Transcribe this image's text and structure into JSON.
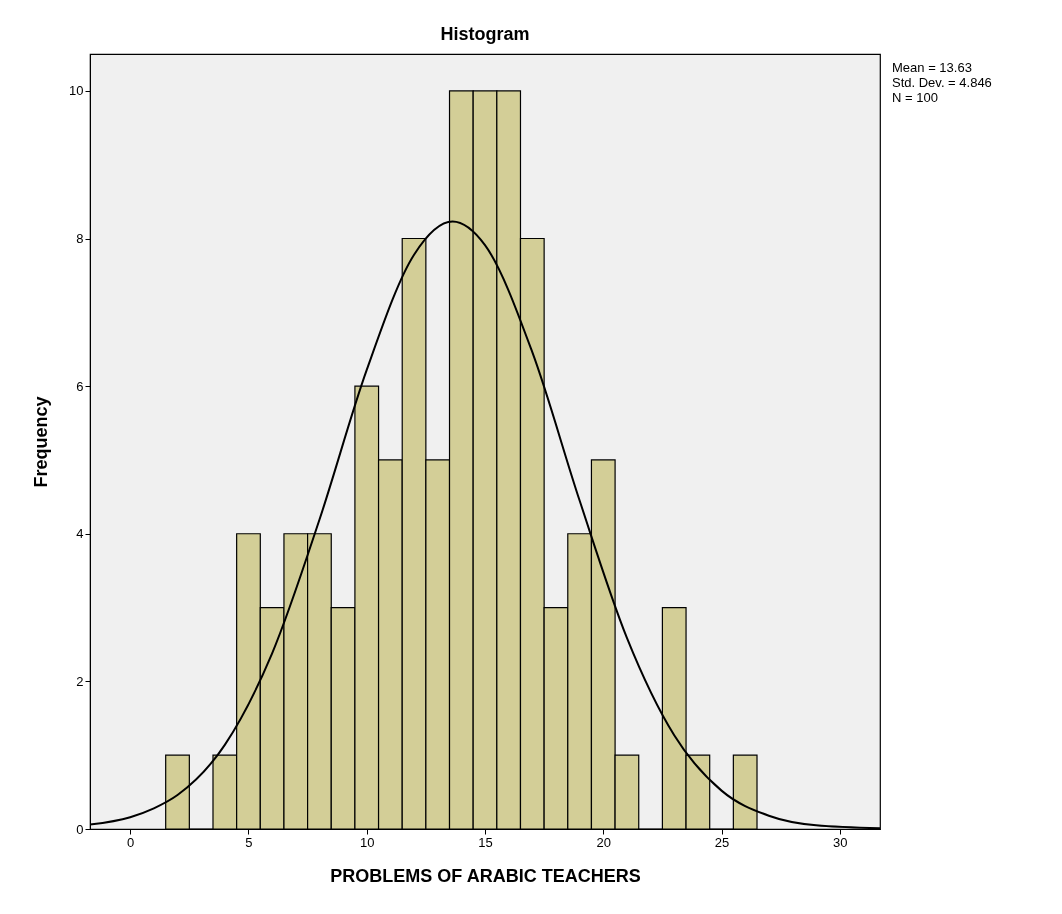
{
  "chart_data": {
    "type": "histogram",
    "title": "Histogram",
    "xlabel": "PROBLEMS OF ARABIC TEACHERS",
    "ylabel": "Frequency",
    "bins": [
      1.5,
      2.5,
      3.5,
      4.5,
      5.5,
      6.5,
      7.5,
      8.5,
      9.5,
      10.5,
      11.5,
      12.5,
      13.5,
      14.5,
      15.5,
      16.5,
      17.5,
      18.5,
      19.5,
      20.5,
      21.5,
      22.5,
      23.5,
      24.5,
      25.5,
      26.5
    ],
    "series": [
      {
        "color": "#d3ce97",
        "values": [
          1,
          0,
          1,
          4,
          3,
          4,
          4,
          3,
          6,
          5,
          8,
          5,
          10,
          10,
          10,
          8,
          3,
          4,
          5,
          1,
          0,
          3,
          1,
          0,
          1
        ]
      },
      {
        "type": "line",
        "color": "#000000",
        "x": [
          -1.7,
          0,
          1,
          2,
          4,
          6,
          8,
          10,
          12,
          13.63,
          15,
          17,
          19,
          21,
          23,
          25,
          27,
          29,
          31.7
        ],
        "values": [
          0.06,
          0.16,
          0.28,
          0.46,
          1.14,
          2.38,
          4.19,
          6.22,
          7.78,
          8.23,
          7.91,
          6.46,
          4.45,
          2.59,
          1.27,
          0.52,
          0.18,
          0.05,
          0.01
        ]
      }
    ],
    "xlim": [
      -1.7,
      31.7
    ],
    "ylim": [
      0,
      10.5
    ],
    "xticks": [
      0,
      5,
      10,
      15,
      20,
      25,
      30
    ],
    "yticks": [
      0,
      2,
      4,
      6,
      8,
      10
    ],
    "grid": false,
    "annotations": [
      "Mean = 13.63",
      "Std. Dev. = 4.846",
      "N = 100"
    ]
  }
}
